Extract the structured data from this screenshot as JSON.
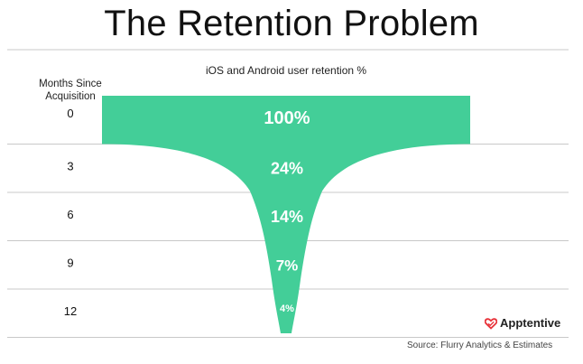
{
  "title": "The Retention Problem",
  "chart_data": {
    "type": "area",
    "title": "iOS and Android user retention %",
    "ylabel": "Months Since Acquisition",
    "categories": [
      "0",
      "3",
      "6",
      "9",
      "12"
    ],
    "series": [
      {
        "values": [
          100,
          24,
          14,
          7,
          4
        ]
      }
    ],
    "value_labels": [
      "100%",
      "24%",
      "14%",
      "7%",
      "4%"
    ],
    "fill_color": "#43CE98",
    "grid": true
  },
  "brand": {
    "name": "Apptentive",
    "icon": "heart-logo-icon",
    "color": "#E8333A"
  },
  "source": "Source: Flurry Analytics & Estimates"
}
